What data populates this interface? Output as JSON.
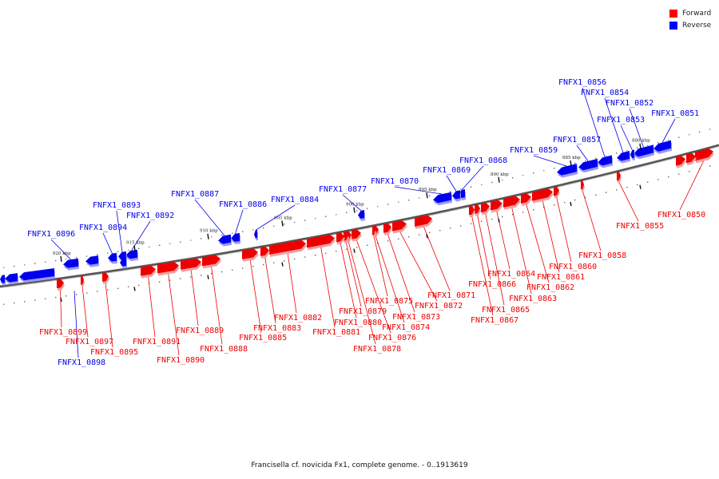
{
  "caption": "Francisella cf. novicida Fx1, complete genome. - 0..1913619",
  "legend": [
    {
      "label": "Forward",
      "color": "#ff0000"
    },
    {
      "label": "Reverse",
      "color": "#0000ff"
    }
  ],
  "colors": {
    "forward": "#ee0000",
    "reverse": "#0000ee",
    "backbone": "#888888"
  },
  "ticks": [
    "880 kbp",
    "885 kbp",
    "890 kbp",
    "895 kbp",
    "900 kbp",
    "905 kbp",
    "910 kbp",
    "915 kbp",
    "920 kbp"
  ],
  "genes_reverse": [
    "FNFX1_0851",
    "FNFX1_0852",
    "FNFX1_0853",
    "FNFX1_0854",
    "FNFX1_0856",
    "FNFX1_0857",
    "FNFX1_0859",
    "FNFX1_0868",
    "FNFX1_0869",
    "FNFX1_0870",
    "FNFX1_0877",
    "FNFX1_0884",
    "FNFX1_0886",
    "FNFX1_0887",
    "FNFX1_0892",
    "FNFX1_0893",
    "FNFX1_0894",
    "FNFX1_0896",
    "FNFX1_0898"
  ],
  "genes_forward": [
    "FNFX1_0850",
    "FNFX1_0855",
    "FNFX1_0858",
    "FNFX1_0860",
    "FNFX1_0861",
    "FNFX1_0862",
    "FNFX1_0863",
    "FNFX1_0864",
    "FNFX1_0865",
    "FNFX1_0866",
    "FNFX1_0867",
    "FNFX1_0871",
    "FNFX1_0872",
    "FNFX1_0873",
    "FNFX1_0874",
    "FNFX1_0875",
    "FNFX1_0876",
    "FNFX1_0878",
    "FNFX1_0879",
    "FNFX1_0880",
    "FNFX1_0881",
    "FNFX1_0882",
    "FNFX1_0883",
    "FNFX1_0885",
    "FNFX1_0888",
    "FNFX1_0889",
    "FNFX1_0890",
    "FNFX1_0891",
    "FNFX1_0895",
    "FNFX1_0897",
    "FNFX1_0899"
  ]
}
